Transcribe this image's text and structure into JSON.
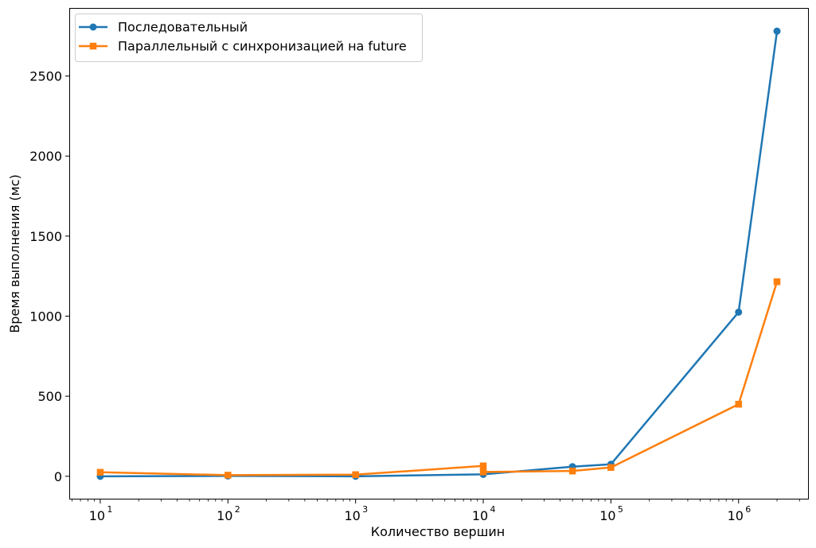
{
  "chart_data": {
    "type": "line",
    "xlabel": "Количество вершин",
    "ylabel": "Время выполнения (мс)",
    "xscale": "log",
    "xlim": [
      5.8,
      3500000
    ],
    "ylim": [
      -140,
      2920
    ],
    "x_tick_labels": [
      "10",
      "10",
      "10",
      "10",
      "10",
      "10"
    ],
    "x_tick_exponents": [
      "1",
      "2",
      "3",
      "4",
      "5",
      "6"
    ],
    "y_ticks": [
      0,
      500,
      1000,
      1500,
      2000,
      2500
    ],
    "y_tick_labels": [
      "0",
      "500",
      "1000",
      "1500",
      "2000",
      "2500"
    ],
    "grid": false,
    "legend_position": "top-left",
    "series": [
      {
        "name": "Последовательный",
        "color": "#1f77b4",
        "marker": "circle",
        "x": [
          10,
          100,
          1000,
          10000,
          50000,
          100000,
          1000000,
          2000000
        ],
        "y": [
          0,
          2,
          0,
          12,
          60,
          75,
          1025,
          2780
        ]
      },
      {
        "name": "Параллельный с синхронизацией на future",
        "color": "#ff7f0e",
        "marker": "square",
        "x": [
          10,
          100,
          1000,
          10000,
          10000,
          50000,
          100000,
          1000000,
          2000000
        ],
        "y": [
          25,
          7,
          10,
          65,
          27,
          33,
          55,
          450,
          1215
        ]
      }
    ]
  }
}
